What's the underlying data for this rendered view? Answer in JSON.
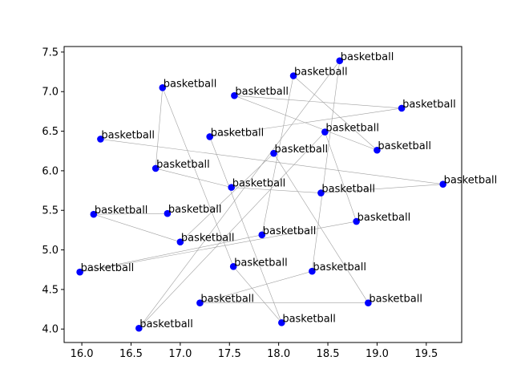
{
  "chart_data": {
    "type": "scatter",
    "title": "",
    "xlabel": "",
    "ylabel": "",
    "xlim": [
      15.82,
      19.86
    ],
    "ylim": [
      3.83,
      7.57
    ],
    "x_ticks": [
      "16.0",
      "16.5",
      "17.0",
      "17.5",
      "18.0",
      "18.5",
      "19.0",
      "19.5"
    ],
    "y_ticks": [
      "4.0",
      "4.5",
      "5.0",
      "5.5",
      "6.0",
      "6.5",
      "7.0",
      "7.5"
    ],
    "grid": false,
    "point_color": "#0000ff",
    "line_color": "#a0a0a0",
    "points": [
      {
        "x": 18.62,
        "y": 7.39,
        "label": "basketball"
      },
      {
        "x": 18.15,
        "y": 7.2,
        "label": "basketball"
      },
      {
        "x": 16.82,
        "y": 7.05,
        "label": "basketball"
      },
      {
        "x": 17.55,
        "y": 6.95,
        "label": "basketball"
      },
      {
        "x": 19.25,
        "y": 6.79,
        "label": "basketball"
      },
      {
        "x": 18.47,
        "y": 6.49,
        "label": "basketball"
      },
      {
        "x": 17.3,
        "y": 6.43,
        "label": "basketball"
      },
      {
        "x": 16.19,
        "y": 6.4,
        "label": "basketball"
      },
      {
        "x": 19.0,
        "y": 6.26,
        "label": "basketball"
      },
      {
        "x": 17.95,
        "y": 6.22,
        "label": "basketball"
      },
      {
        "x": 16.75,
        "y": 6.03,
        "label": "basketball"
      },
      {
        "x": 19.67,
        "y": 5.83,
        "label": "basketball"
      },
      {
        "x": 17.52,
        "y": 5.79,
        "label": "basketball"
      },
      {
        "x": 18.43,
        "y": 5.72,
        "label": "basketball"
      },
      {
        "x": 16.12,
        "y": 5.45,
        "label": "basketball"
      },
      {
        "x": 16.87,
        "y": 5.46,
        "label": "basketball"
      },
      {
        "x": 18.79,
        "y": 5.36,
        "label": "basketball"
      },
      {
        "x": 17.83,
        "y": 5.19,
        "label": "basketball"
      },
      {
        "x": 17.0,
        "y": 5.1,
        "label": "basketball"
      },
      {
        "x": 17.54,
        "y": 4.79,
        "label": "basketball"
      },
      {
        "x": 18.34,
        "y": 4.73,
        "label": "basketball"
      },
      {
        "x": 15.98,
        "y": 4.72,
        "label": "basketball"
      },
      {
        "x": 17.2,
        "y": 4.33,
        "label": "basketball"
      },
      {
        "x": 18.91,
        "y": 4.33,
        "label": "basketball"
      },
      {
        "x": 18.03,
        "y": 4.08,
        "label": "basketball"
      },
      {
        "x": 16.58,
        "y": 4.01,
        "label": "basketball"
      }
    ],
    "path_order": [
      7,
      11,
      13,
      12,
      10,
      2,
      19,
      24,
      6,
      4,
      3,
      8,
      1,
      17,
      21,
      16,
      5,
      25,
      0,
      20,
      22,
      23,
      9,
      18,
      14,
      15
    ]
  }
}
